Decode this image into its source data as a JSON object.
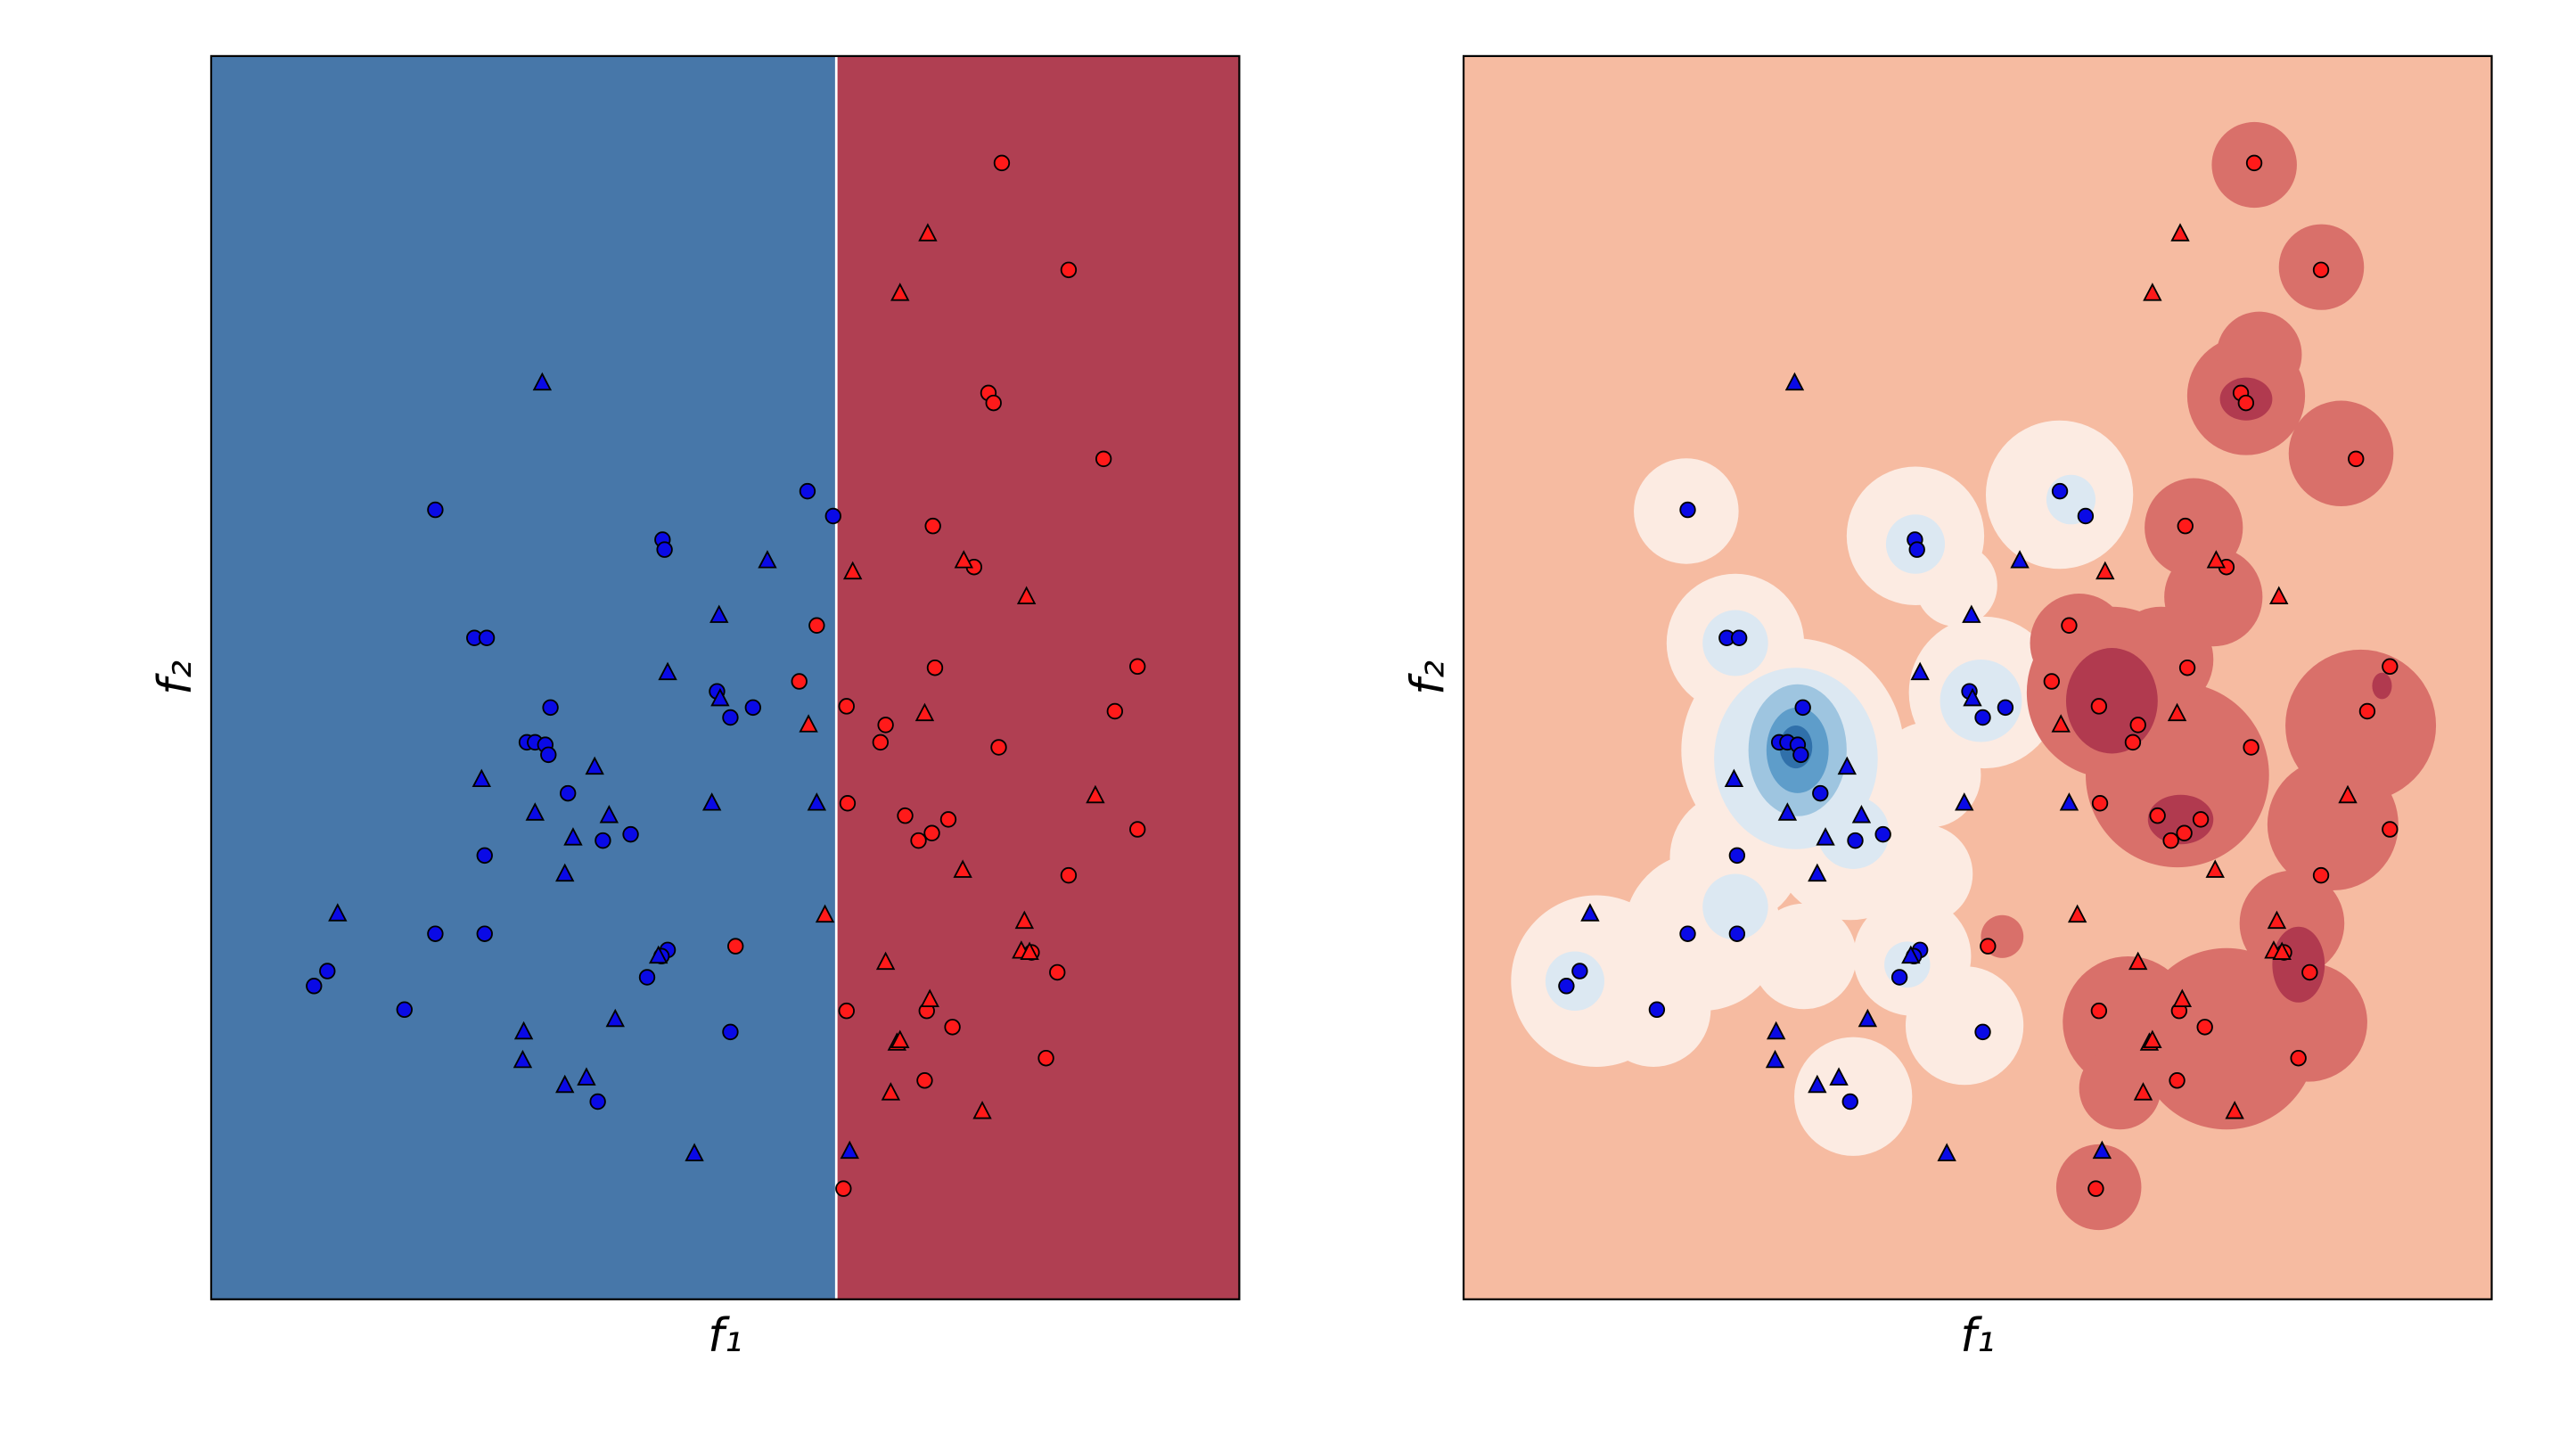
{
  "chart_data": [
    {
      "type": "scatter",
      "xlabel": "f₁",
      "ylabel": "f₂",
      "xlim": [
        0,
        100
      ],
      "ylim": [
        0,
        100
      ],
      "regions": [
        {
          "x": [
            0,
            60.8
          ],
          "color": "#4777a9"
        },
        {
          "x": [
            60.8,
            100
          ],
          "color": "#b03f52"
        }
      ],
      "series": [
        {
          "color": "#0a0ae6",
          "marker": "o",
          "x": [
            21.8,
            43.9,
            44.1,
            25.6,
            26.8,
            33.0,
            30.7,
            31.5,
            32.5,
            32.8,
            49.2,
            50.5,
            52.7,
            34.7,
            40.8,
            38.1,
            26.6,
            21.8,
            26.6,
            44.4,
            43.8,
            42.4,
            11.3,
            10.0,
            18.8,
            50.5,
            37.6,
            58.0,
            60.5
          ],
          "y": [
            63.5,
            61.1,
            60.3,
            53.2,
            53.2,
            47.6,
            44.8,
            44.8,
            44.6,
            43.8,
            48.9,
            46.8,
            47.6,
            40.7,
            37.4,
            36.9,
            35.7,
            29.4,
            29.4,
            28.1,
            27.6,
            25.9,
            26.4,
            25.2,
            23.3,
            21.5,
            15.9,
            65.0,
            63.0
          ]
        },
        {
          "color": "#0a0ae6",
          "marker": "^",
          "x": [
            32.2,
            54.1,
            49.4,
            44.4,
            49.5,
            37.3,
            26.3,
            31.5,
            38.7,
            35.2,
            48.7,
            58.9,
            34.4,
            12.3,
            43.5,
            39.3,
            30.4,
            30.3,
            34.4,
            36.5,
            47.0,
            62.1
          ],
          "y": [
            73.7,
            59.4,
            55.0,
            50.4,
            48.3,
            42.8,
            41.8,
            39.1,
            38.9,
            37.1,
            39.9,
            39.9,
            34.2,
            31.0,
            27.6,
            22.5,
            21.5,
            19.2,
            17.2,
            17.8,
            11.7,
            11.9
          ]
        },
        {
          "color": "#ff1a1a",
          "marker": "o",
          "x": [
            76.9,
            83.4,
            75.6,
            76.1,
            86.8,
            70.2,
            74.2,
            58.9,
            70.4,
            57.2,
            90.1,
            61.8,
            65.6,
            65.1,
            87.9,
            76.6,
            61.9,
            67.5,
            71.7,
            70.1,
            68.8,
            83.4,
            51.0,
            79.8,
            82.3,
            61.8,
            69.6,
            72.1,
            81.2,
            69.4,
            61.5,
            90.1
          ],
          "y": [
            91.4,
            82.8,
            72.9,
            72.1,
            67.6,
            62.2,
            58.9,
            54.2,
            50.8,
            49.7,
            50.9,
            47.7,
            46.2,
            44.8,
            47.3,
            44.4,
            39.9,
            38.9,
            38.6,
            37.5,
            36.9,
            34.1,
            28.4,
            27.9,
            26.3,
            23.2,
            23.2,
            21.9,
            19.4,
            17.6,
            8.9,
            37.8
          ]
        },
        {
          "color": "#ff1a1a",
          "marker": "^",
          "x": [
            69.7,
            67.0,
            62.4,
            73.2,
            79.3,
            58.1,
            69.4,
            86.0,
            73.1,
            59.7,
            79.1,
            78.8,
            79.6,
            65.6,
            69.9,
            66.7,
            67.0,
            66.1,
            75.0
          ],
          "y": [
            85.7,
            80.9,
            58.5,
            59.4,
            56.5,
            46.2,
            47.1,
            40.5,
            34.5,
            30.9,
            30.4,
            28.0,
            27.9,
            27.1,
            24.1,
            20.6,
            20.8,
            16.6,
            15.1
          ]
        }
      ]
    },
    {
      "type": "scatter",
      "xlabel": "f₁",
      "ylabel": "f₂",
      "xlim": [
        0,
        100
      ],
      "ylim": [
        0,
        100
      ],
      "background": "#f6bba1",
      "series": [
        {
          "color": "#0a0ae6",
          "marker": "o",
          "x": [
            21.8,
            43.9,
            44.1,
            25.6,
            26.8,
            33.0,
            30.7,
            31.5,
            32.5,
            32.8,
            49.2,
            50.5,
            52.7,
            34.7,
            40.8,
            38.1,
            26.6,
            21.8,
            26.6,
            44.4,
            43.8,
            42.4,
            11.3,
            10.0,
            18.8,
            50.5,
            37.6,
            58.0,
            60.5
          ],
          "y": [
            63.5,
            61.1,
            60.3,
            53.2,
            53.2,
            47.6,
            44.8,
            44.8,
            44.6,
            43.8,
            48.9,
            46.8,
            47.6,
            40.7,
            37.4,
            36.9,
            35.7,
            29.4,
            29.4,
            28.1,
            27.6,
            25.9,
            26.4,
            25.2,
            23.3,
            21.5,
            15.9,
            65.0,
            63.0
          ]
        },
        {
          "color": "#0a0ae6",
          "marker": "^",
          "x": [
            32.2,
            54.1,
            49.4,
            44.4,
            49.5,
            37.3,
            26.3,
            31.5,
            38.7,
            35.2,
            48.7,
            58.9,
            34.4,
            12.3,
            43.5,
            39.3,
            30.4,
            30.3,
            34.4,
            36.5,
            47.0,
            62.1
          ],
          "y": [
            73.7,
            59.4,
            55.0,
            50.4,
            48.3,
            42.8,
            41.8,
            39.1,
            38.9,
            37.1,
            39.9,
            39.9,
            34.2,
            31.0,
            27.6,
            22.5,
            21.5,
            19.2,
            17.2,
            17.8,
            11.7,
            11.9
          ]
        },
        {
          "color": "#ff1a1a",
          "marker": "o",
          "x": [
            76.9,
            83.4,
            75.6,
            76.1,
            86.8,
            70.2,
            74.2,
            58.9,
            70.4,
            57.2,
            90.1,
            61.8,
            65.6,
            65.1,
            87.9,
            76.6,
            61.9,
            67.5,
            71.7,
            70.1,
            68.8,
            83.4,
            51.0,
            79.8,
            82.3,
            61.8,
            69.6,
            72.1,
            81.2,
            69.4,
            61.5,
            90.1
          ],
          "y": [
            91.4,
            82.8,
            72.9,
            72.1,
            67.6,
            62.2,
            58.9,
            54.2,
            50.8,
            49.7,
            50.9,
            47.7,
            46.2,
            44.8,
            47.3,
            44.4,
            39.9,
            38.9,
            38.6,
            37.5,
            36.9,
            34.1,
            28.4,
            27.9,
            26.3,
            23.2,
            23.2,
            21.9,
            19.4,
            17.6,
            8.9,
            37.8
          ]
        },
        {
          "color": "#ff1a1a",
          "marker": "^",
          "x": [
            69.7,
            67.0,
            62.4,
            73.2,
            79.3,
            58.1,
            69.4,
            86.0,
            73.1,
            59.7,
            79.1,
            78.8,
            79.6,
            65.6,
            69.9,
            66.7,
            67.0,
            66.1,
            75.0
          ],
          "y": [
            85.7,
            80.9,
            58.5,
            59.4,
            56.5,
            46.2,
            47.1,
            40.5,
            34.5,
            30.9,
            30.4,
            28.0,
            27.9,
            27.1,
            24.1,
            20.6,
            20.8,
            16.6,
            15.1
          ]
        }
      ]
    }
  ]
}
